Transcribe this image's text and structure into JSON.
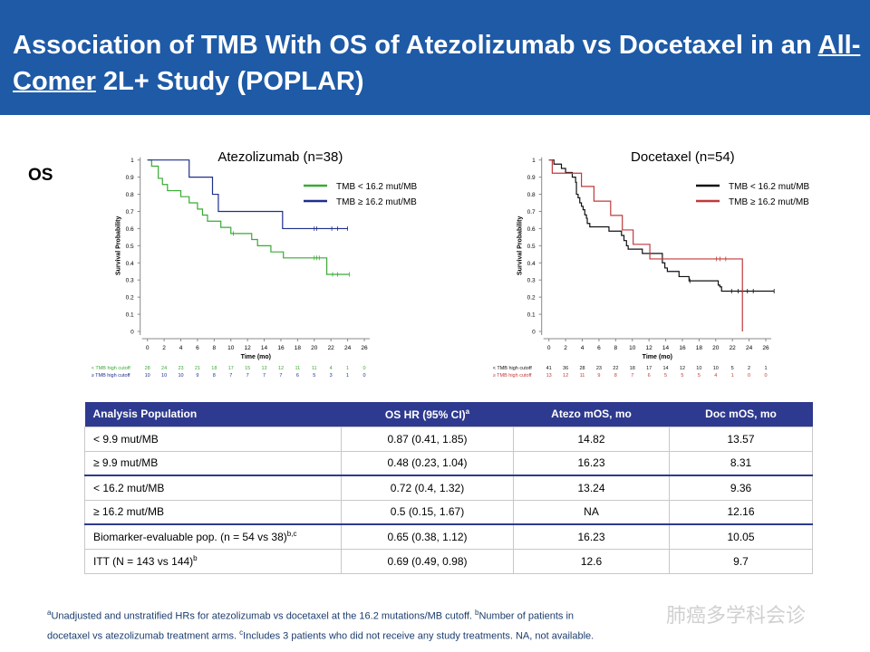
{
  "header": {
    "title_pre": "Association of TMB With OS of Atezolizumab vs Docetaxel in an ",
    "title_underlined": "All-Comer",
    "title_post": " 2L+ Study (POPLAR)"
  },
  "section_label": "OS",
  "charts": [
    {
      "title": "Atezolizumab (n=38)",
      "type": "km-line",
      "ylabel": "Survival Probability",
      "xlabel": "Time (mo)",
      "xticks": [
        0,
        2,
        4,
        6,
        8,
        10,
        12,
        14,
        16,
        18,
        20,
        22,
        24,
        26
      ],
      "yticks": [
        0,
        0.1,
        0.2,
        0.3,
        0.4,
        0.5,
        0.6,
        0.7,
        0.8,
        0.9,
        1
      ],
      "yticklabels": [
        "0",
        "0.1",
        "0.2",
        "0.3",
        "0.4",
        "0.5",
        "0.6",
        "0.7",
        "0.8",
        "0.9",
        "1"
      ],
      "legend": [
        "TMB < 16.2 mut/MB",
        "TMB ≥ 16.2 mut/MB"
      ],
      "series": [
        {
          "name": "TMB < 16.2 mut/MB",
          "color": "#3aaa35",
          "steps": [
            [
              0,
              1
            ],
            [
              0.5,
              0.964
            ],
            [
              1.3,
              0.893
            ],
            [
              1.8,
              0.857
            ],
            [
              2.4,
              0.821
            ],
            [
              4,
              0.786
            ],
            [
              5,
              0.75
            ],
            [
              6,
              0.714
            ],
            [
              6.6,
              0.679
            ],
            [
              7.2,
              0.643
            ],
            [
              8.8,
              0.607
            ],
            [
              10,
              0.571
            ],
            [
              12.5,
              0.536
            ],
            [
              13.2,
              0.5
            ],
            [
              14.8,
              0.464
            ],
            [
              16.3,
              0.429
            ],
            [
              21.5,
              0.333
            ]
          ],
          "end": 24.2,
          "censors": [
            10.3,
            20,
            20.3,
            20.6,
            22.2,
            22.8,
            24.2
          ]
        },
        {
          "name": "TMB ≥ 16.2 mut/MB",
          "color": "#1f2f8a",
          "steps": [
            [
              0,
              1
            ],
            [
              5,
              0.9
            ],
            [
              7.8,
              0.8
            ],
            [
              8.5,
              0.7
            ],
            [
              16.2,
              0.6
            ]
          ],
          "end": 24,
          "censors": [
            20,
            20.3,
            22.1,
            22.8,
            24
          ]
        }
      ],
      "at_risk": [
        {
          "label": "< TMB high cutoff",
          "color": "#3aaa35",
          "values": [
            28,
            24,
            23,
            21,
            18,
            17,
            15,
            13,
            12,
            11,
            11,
            4,
            1,
            0
          ]
        },
        {
          "label": "≥ TMB high cutoff",
          "color": "#1f2f8a",
          "values": [
            10,
            10,
            10,
            9,
            8,
            7,
            7,
            7,
            7,
            6,
            5,
            3,
            1,
            0
          ]
        }
      ]
    },
    {
      "title": "Docetaxel (n=54)",
      "type": "km-line",
      "ylabel": "Survival Probability",
      "xlabel": "Time (mo)",
      "xticks": [
        0,
        2,
        4,
        6,
        8,
        10,
        12,
        14,
        16,
        18,
        20,
        22,
        24,
        26
      ],
      "yticks": [
        0,
        0.1,
        0.2,
        0.3,
        0.4,
        0.5,
        0.6,
        0.7,
        0.8,
        0.9,
        1
      ],
      "yticklabels": [
        "0",
        "0.1",
        "0.2",
        "0.3",
        "0.4",
        "0.5",
        "0.6",
        "0.7",
        "0.8",
        "0.9",
        "1"
      ],
      "legend": [
        "TMB < 16.2 mut/MB",
        "TMB ≥ 16.2 mut/MB"
      ],
      "series": [
        {
          "name": "TMB < 16.2 mut/MB",
          "color": "#111111",
          "steps": [
            [
              0,
              1
            ],
            [
              0.6,
              0.976
            ],
            [
              1.5,
              0.951
            ],
            [
              2,
              0.927
            ],
            [
              2.8,
              0.9
            ],
            [
              3.2,
              0.87
            ],
            [
              3.3,
              0.8
            ],
            [
              3.5,
              0.78
            ],
            [
              3.7,
              0.75
            ],
            [
              3.9,
              0.73
            ],
            [
              4.1,
              0.71
            ],
            [
              4.3,
              0.68
            ],
            [
              4.5,
              0.66
            ],
            [
              4.6,
              0.63
            ],
            [
              4.9,
              0.61
            ],
            [
              7.2,
              0.585
            ],
            [
              8.7,
              0.56
            ],
            [
              9,
              0.53
            ],
            [
              9.3,
              0.5
            ],
            [
              9.5,
              0.48
            ],
            [
              11.2,
              0.455
            ],
            [
              13.6,
              0.4
            ],
            [
              13.9,
              0.37
            ],
            [
              14.2,
              0.35
            ],
            [
              15.6,
              0.32
            ],
            [
              16.8,
              0.295
            ],
            [
              20.3,
              0.27
            ],
            [
              20.5,
              0.26
            ],
            [
              20.7,
              0.235
            ]
          ],
          "end": 27,
          "censors": [
            16.9,
            21.9,
            22.7,
            23.2,
            23.8,
            24.5,
            27
          ]
        },
        {
          "name": "TMB ≥ 16.2 mut/MB",
          "color": "#c0393b",
          "steps": [
            [
              0,
              1
            ],
            [
              0.4,
              0.923
            ],
            [
              3.9,
              0.846
            ],
            [
              5.4,
              0.76
            ],
            [
              7.4,
              0.677
            ],
            [
              8.8,
              0.592
            ],
            [
              10.1,
              0.508
            ],
            [
              12.1,
              0.423
            ],
            [
              23.2,
              0
            ]
          ],
          "end": 23.2,
          "censors": [
            20.1,
            20.5,
            21.2
          ]
        }
      ],
      "at_risk": [
        {
          "label": "< TMB high cutoff",
          "color": "#111111",
          "values": [
            41,
            36,
            28,
            23,
            22,
            18,
            17,
            14,
            12,
            10,
            10,
            5,
            2,
            1
          ]
        },
        {
          "label": "≥ TMB high cutoff",
          "color": "#c0393b",
          "values": [
            13,
            12,
            11,
            9,
            8,
            7,
            6,
            5,
            5,
            5,
            4,
            1,
            0,
            0
          ]
        }
      ]
    }
  ],
  "table": {
    "headers": [
      "Analysis Population",
      "OS HR (95% CI)",
      "Atezo mOS, mo",
      "Doc mOS, mo"
    ],
    "header_sup": "a",
    "rows": [
      [
        "< 9.9 mut/MB",
        "0.87 (0.41, 1.85)",
        "14.82",
        "13.57"
      ],
      [
        "≥ 9.9 mut/MB",
        "0.48 (0.23, 1.04)",
        "16.23",
        "8.31"
      ],
      [
        "< 16.2 mut/MB",
        "0.72 (0.4, 1.32)",
        "13.24",
        "9.36"
      ],
      [
        "≥ 16.2 mut/MB",
        "0.5 (0.15, 1.67)",
        "NA",
        "12.16"
      ],
      [
        "Biomarker-evaluable  pop. (n = 54 vs 38)",
        "0.65 (0.38, 1.12)",
        "16.23",
        "10.05"
      ],
      [
        "ITT  (N = 143 vs 144)",
        "0.69 (0.49, 0.98)",
        "12.6",
        "9.7"
      ]
    ],
    "row_sups": [
      "",
      "",
      "",
      "",
      "b,c",
      "b"
    ]
  },
  "footnote": {
    "a": "Unadjusted and unstratified HRs for atezolizumab vs docetaxel at the 16.2 mutations/MB cutoff. ",
    "b": "Number of patients in",
    "b2": "docetaxel vs atezolizumab treatment arms. ",
    "c": "Includes 3 patients who did not receive any study treatments. NA, not available."
  },
  "watermark": "肺癌多学科会诊"
}
